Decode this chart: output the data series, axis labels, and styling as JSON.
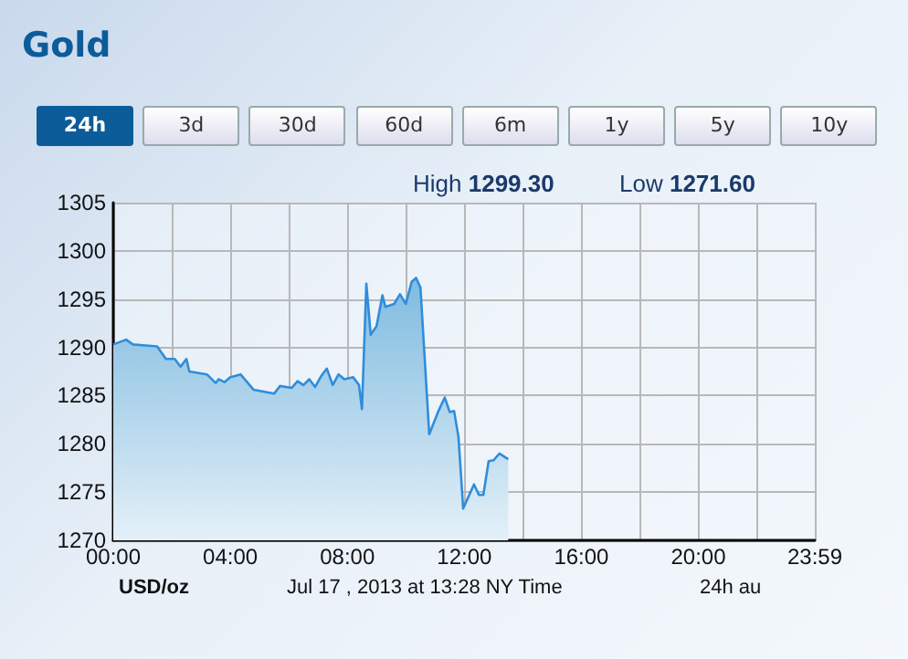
{
  "chart_data": {
    "type": "area",
    "title": "Gold",
    "annotations": [
      "24h",
      "3d",
      "30d",
      "60d",
      "6m",
      "1y",
      "5y",
      "10y",
      "High 1299.30",
      "Low 1271.60",
      "Jul 17 , 2013 at 13:28 NY Time",
      "24h au",
      "USD/oz"
    ],
    "x": [
      0,
      0.44,
      0.67,
      1.1,
      1.5,
      1.8,
      2.1,
      2.3,
      2.5,
      2.6,
      3.2,
      3.5,
      3.6,
      3.8,
      4.0,
      4.35,
      4.8,
      5.5,
      5.7,
      6.1,
      6.3,
      6.5,
      6.7,
      6.9,
      7.1,
      7.3,
      7.5,
      7.7,
      7.9,
      8.2,
      8.4,
      8.5,
      8.65,
      8.8,
      9.0,
      9.2,
      9.3,
      9.6,
      9.8,
      10.0,
      10.2,
      10.35,
      10.5,
      10.8,
      11.1,
      11.33,
      11.5,
      11.65,
      11.8,
      11.96,
      12.33,
      12.5,
      12.65,
      12.83,
      13.0,
      13.2,
      13.5
    ],
    "series": [
      {
        "color": "#2f8ddb",
        "values": [
          1290.3,
          1290.8,
          1290.3,
          1290.2,
          1290.1,
          1288.8,
          1288.8,
          1288.0,
          1288.8,
          1287.5,
          1287.2,
          1286.3,
          1286.7,
          1286.4,
          1286.9,
          1287.2,
          1285.6,
          1285.2,
          1286.0,
          1285.8,
          1286.5,
          1286.1,
          1286.7,
          1285.9,
          1287.0,
          1287.8,
          1286.1,
          1287.2,
          1286.7,
          1286.9,
          1286.1,
          1283.6,
          1296.6,
          1291.3,
          1292.2,
          1295.4,
          1294.2,
          1294.5,
          1295.5,
          1294.5,
          1296.8,
          1297.2,
          1296.2,
          1281.0,
          1283.3,
          1284.8,
          1283.3,
          1283.4,
          1280.7,
          1273.3,
          1275.8,
          1274.7,
          1274.7,
          1278.2,
          1278.3,
          1279.0,
          1278.4
        ]
      }
    ],
    "xlim": [
      0,
      23.98
    ],
    "xticks": [
      {
        "value": 0,
        "label": "00:00"
      },
      {
        "value": 2,
        "label": null
      },
      {
        "value": 4,
        "label": "04:00"
      },
      {
        "value": 6,
        "label": null
      },
      {
        "value": 8,
        "label": "08:00"
      },
      {
        "value": 10,
        "label": null
      },
      {
        "value": 12,
        "label": "12:00"
      },
      {
        "value": 14,
        "label": null
      },
      {
        "value": 16,
        "label": "16:00"
      },
      {
        "value": 18,
        "label": null
      },
      {
        "value": 20,
        "label": "20:00"
      },
      {
        "value": 22,
        "label": null
      },
      {
        "value": 23.98,
        "label": "23:59"
      }
    ],
    "ylim": [
      1270,
      1305
    ],
    "yticks": [
      1270,
      1275,
      1280,
      1285,
      1290,
      1295,
      1300,
      1305
    ],
    "grid": true,
    "marker": "none",
    "line_style": "solid"
  }
}
